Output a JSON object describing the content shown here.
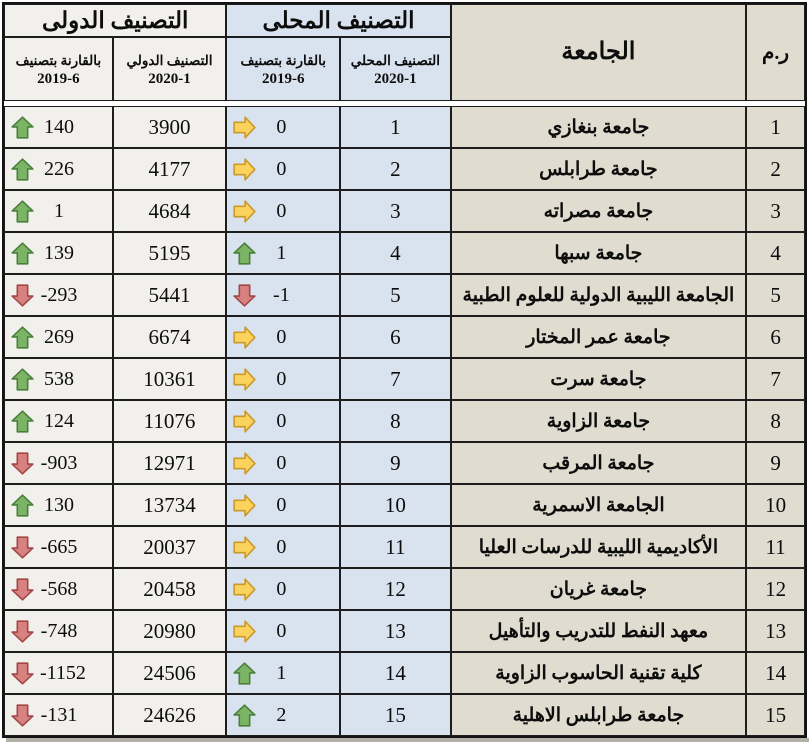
{
  "colors": {
    "section_local_bg": "#d9e2ef",
    "section_intl_bg": "#f2f0ec",
    "section_uni_bg": "#e0dcd0",
    "arrow_up_fill": "#7cb466",
    "arrow_up_stroke": "#4a803b",
    "arrow_right_fill": "#fbd25c",
    "arrow_right_stroke": "#c9992b",
    "arrow_down_fill": "#d78181",
    "arrow_down_stroke": "#a34646"
  },
  "table": {
    "header": {
      "num": "ر.م",
      "university": "الجامعة",
      "local_group": "التصنيف المحلى",
      "intl_group": "التصنيف الدولى",
      "sub": {
        "local_rank": [
          "التصنيف المحلي",
          "2020-1"
        ],
        "local_cmp": [
          "بالقارنة بتصنيف",
          "2019-6"
        ],
        "intl_rank": [
          "التصنيف الدولي",
          "2020-1"
        ],
        "intl_cmp": [
          "بالقارنة بتصنيف",
          "2019-6"
        ]
      }
    },
    "rows": [
      {
        "num": "1",
        "university": "جامعة بنغازي",
        "local_rank": "1",
        "local_change": {
          "dir": "right",
          "value": "0"
        },
        "intl_rank": "3900",
        "intl_change": {
          "dir": "up",
          "value": "140"
        }
      },
      {
        "num": "2",
        "university": "جامعة طرابلس",
        "local_rank": "2",
        "local_change": {
          "dir": "right",
          "value": "0"
        },
        "intl_rank": "4177",
        "intl_change": {
          "dir": "up",
          "value": "226"
        }
      },
      {
        "num": "3",
        "university": "جامعة مصراته",
        "local_rank": "3",
        "local_change": {
          "dir": "right",
          "value": "0"
        },
        "intl_rank": "4684",
        "intl_change": {
          "dir": "up",
          "value": "1"
        }
      },
      {
        "num": "4",
        "university": "جامعة سبها",
        "local_rank": "4",
        "local_change": {
          "dir": "up",
          "value": "1"
        },
        "intl_rank": "5195",
        "intl_change": {
          "dir": "up",
          "value": "139"
        }
      },
      {
        "num": "5",
        "university": "الجامعة الليبية الدولية للعلوم الطبية",
        "local_rank": "5",
        "local_change": {
          "dir": "down",
          "value": "-1"
        },
        "intl_rank": "5441",
        "intl_change": {
          "dir": "down",
          "value": "-293"
        }
      },
      {
        "num": "6",
        "university": "جامعة عمر المختار",
        "local_rank": "6",
        "local_change": {
          "dir": "right",
          "value": "0"
        },
        "intl_rank": "6674",
        "intl_change": {
          "dir": "up",
          "value": "269"
        }
      },
      {
        "num": "7",
        "university": "جامعة سرت",
        "local_rank": "7",
        "local_change": {
          "dir": "right",
          "value": "0"
        },
        "intl_rank": "10361",
        "intl_change": {
          "dir": "up",
          "value": "538"
        }
      },
      {
        "num": "8",
        "university": "جامعة الزاوية",
        "local_rank": "8",
        "local_change": {
          "dir": "right",
          "value": "0"
        },
        "intl_rank": "11076",
        "intl_change": {
          "dir": "up",
          "value": "124"
        }
      },
      {
        "num": "9",
        "university": "جامعة المرقب",
        "local_rank": "9",
        "local_change": {
          "dir": "right",
          "value": "0"
        },
        "intl_rank": "12971",
        "intl_change": {
          "dir": "down",
          "value": "-903"
        }
      },
      {
        "num": "10",
        "university": "الجامعة الاسمرية",
        "local_rank": "10",
        "local_change": {
          "dir": "right",
          "value": "0"
        },
        "intl_rank": "13734",
        "intl_change": {
          "dir": "up",
          "value": "130"
        }
      },
      {
        "num": "11",
        "university": "الأكاديمية الليبية للدرسات العليا",
        "local_rank": "11",
        "local_change": {
          "dir": "right",
          "value": "0"
        },
        "intl_rank": "20037",
        "intl_change": {
          "dir": "down",
          "value": "-665"
        }
      },
      {
        "num": "12",
        "university": "جامعة غريان",
        "local_rank": "12",
        "local_change": {
          "dir": "right",
          "value": "0"
        },
        "intl_rank": "20458",
        "intl_change": {
          "dir": "down",
          "value": "-568"
        }
      },
      {
        "num": "13",
        "university": "معهد النفط للتدريب والتأهيل",
        "local_rank": "13",
        "local_change": {
          "dir": "right",
          "value": "0"
        },
        "intl_rank": "20980",
        "intl_change": {
          "dir": "down",
          "value": "-748"
        }
      },
      {
        "num": "14",
        "university": "كلية تقنية الحاسوب الزاوية",
        "local_rank": "14",
        "local_change": {
          "dir": "up",
          "value": "1"
        },
        "intl_rank": "24506",
        "intl_change": {
          "dir": "down",
          "value": "-1152"
        }
      },
      {
        "num": "15",
        "university": "جامعة طرابلس الاهلية",
        "local_rank": "15",
        "local_change": {
          "dir": "up",
          "value": "2"
        },
        "intl_rank": "24626",
        "intl_change": {
          "dir": "down",
          "value": "-131"
        }
      }
    ]
  }
}
